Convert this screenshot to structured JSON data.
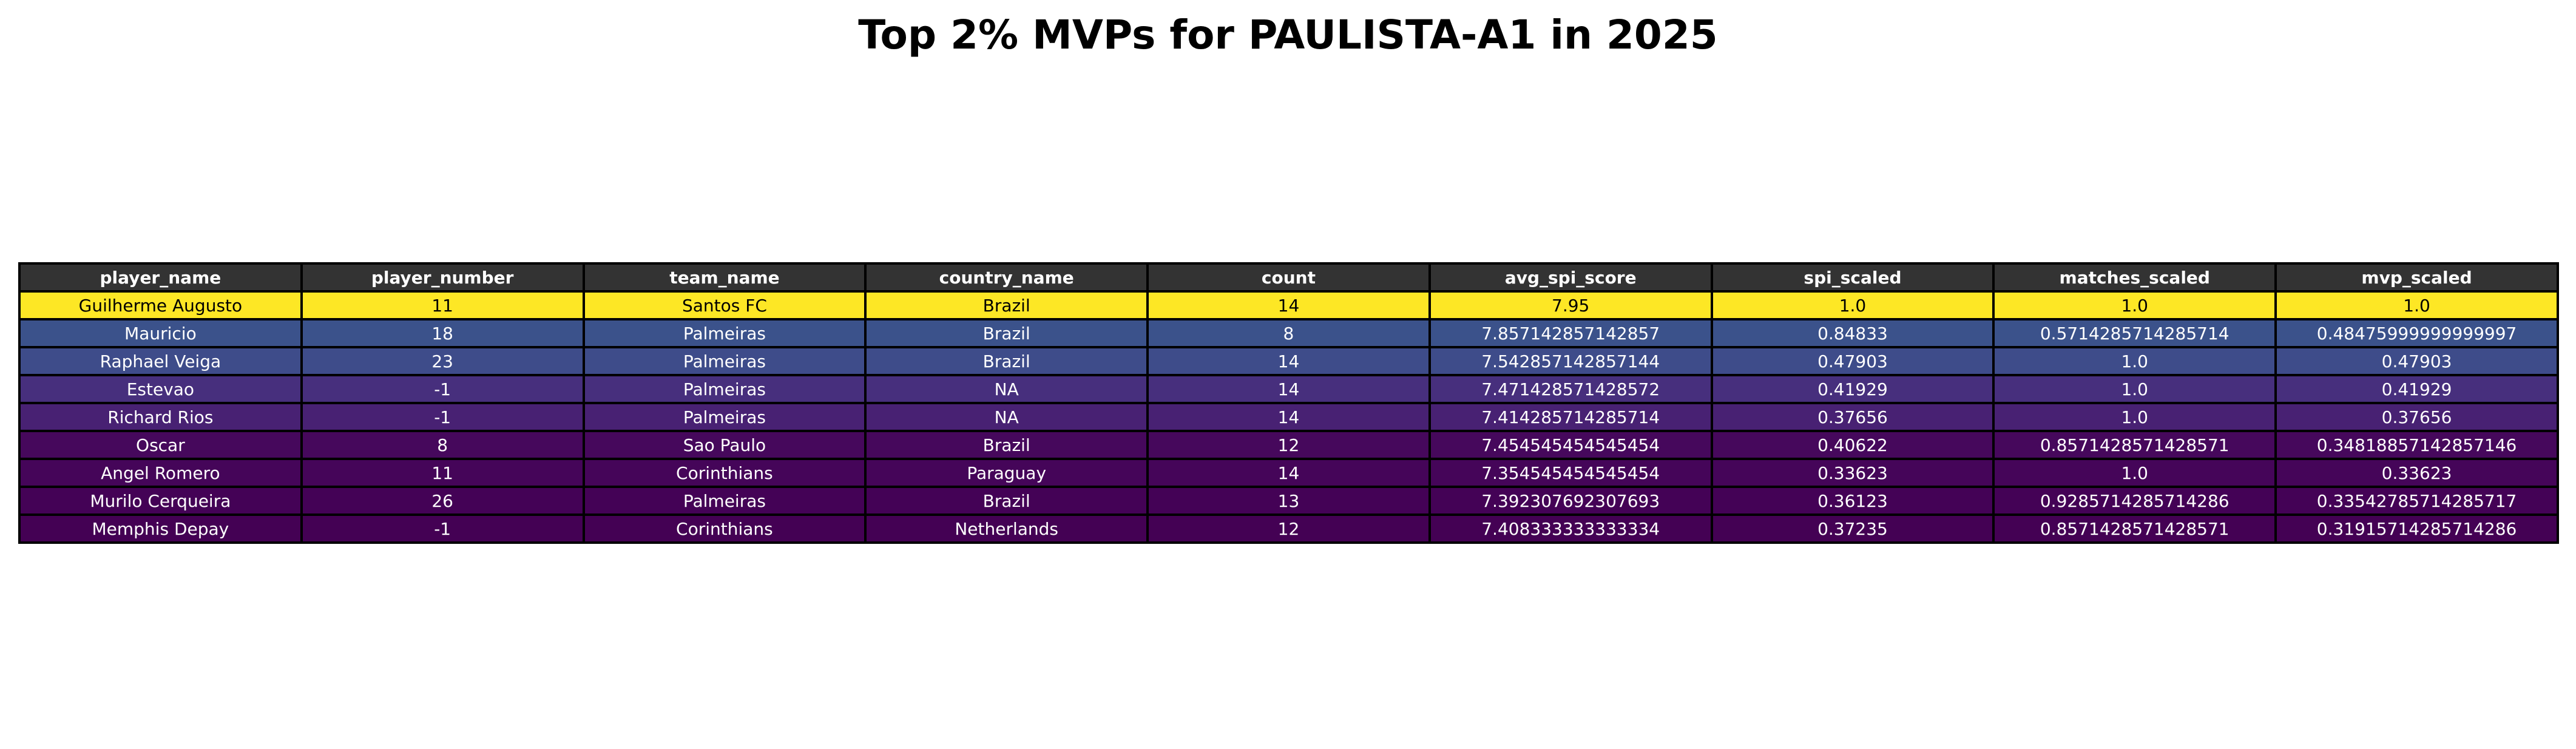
{
  "chart_data": {
    "type": "table",
    "title": "Top 2% MVPs for PAULISTA-A1 in 2025",
    "columns": [
      "player_name",
      "player_number",
      "team_name",
      "country_name",
      "count",
      "avg_spi_score",
      "spi_scaled",
      "matches_scaled",
      "mvp_scaled"
    ],
    "rows": [
      {
        "cells": [
          "Guilherme Augusto",
          "11",
          "Santos FC",
          "Brazil",
          "14",
          "7.95",
          "1.0",
          "1.0",
          "1.0"
        ],
        "color": "#fde725",
        "text_color": "#000000"
      },
      {
        "cells": [
          "Mauricio",
          "18",
          "Palmeiras",
          "Brazil",
          "8",
          "7.857142857142857",
          "0.84833",
          "0.5714285714285714",
          "0.48475999999999997"
        ],
        "color": "#3b528b",
        "text_color": "#ffffff"
      },
      {
        "cells": [
          "Raphael Veiga",
          "23",
          "Palmeiras",
          "Brazil",
          "14",
          "7.542857142857144",
          "0.47903",
          "1.0",
          "0.47903"
        ],
        "color": "#3e4c8a",
        "text_color": "#ffffff"
      },
      {
        "cells": [
          "Estevao",
          "-1",
          "Palmeiras",
          "NA",
          "14",
          "7.471428571428572",
          "0.41929",
          "1.0",
          "0.41929"
        ],
        "color": "#472f7d",
        "text_color": "#ffffff"
      },
      {
        "cells": [
          "Richard Rios",
          "-1",
          "Palmeiras",
          "NA",
          "14",
          "7.414285714285714",
          "0.37656",
          "1.0",
          "0.37656"
        ],
        "color": "#482173",
        "text_color": "#ffffff"
      },
      {
        "cells": [
          "Oscar",
          "8",
          "Sao Paulo",
          "Brazil",
          "12",
          "7.454545454545454",
          "0.40622",
          "0.8571428571428571",
          "0.34818857142857146"
        ],
        "color": "#46085c",
        "text_color": "#ffffff"
      },
      {
        "cells": [
          "Angel Romero",
          "11",
          "Corinthians",
          "Paraguay",
          "14",
          "7.354545454545454",
          "0.33623",
          "1.0",
          "0.33623"
        ],
        "color": "#450559",
        "text_color": "#ffffff"
      },
      {
        "cells": [
          "Murilo Cerqueira",
          "26",
          "Palmeiras",
          "Brazil",
          "13",
          "7.392307692307693",
          "0.36123",
          "0.9285714285714286",
          "0.33542785714285717"
        ],
        "color": "#440256",
        "text_color": "#ffffff"
      },
      {
        "cells": [
          "Memphis Depay",
          "-1",
          "Corinthians",
          "Netherlands",
          "12",
          "7.408333333333334",
          "0.37235",
          "0.8571428571428571",
          "0.31915714285714286"
        ],
        "color": "#440154",
        "text_color": "#ffffff"
      }
    ]
  }
}
